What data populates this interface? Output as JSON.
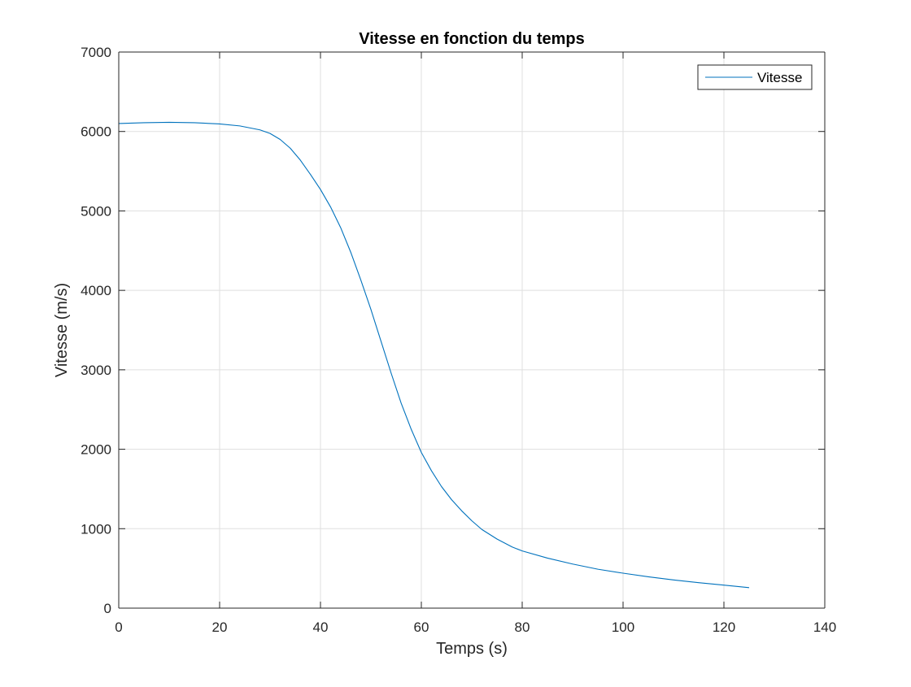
{
  "chart_data": {
    "type": "line",
    "title": "Vitesse en fonction du temps",
    "xlabel": "Temps (s)",
    "ylabel": "Vitesse (m/s)",
    "xlim": [
      0,
      140
    ],
    "ylim": [
      0,
      7000
    ],
    "xticks": [
      0,
      20,
      40,
      60,
      80,
      100,
      120,
      140
    ],
    "yticks": [
      0,
      1000,
      2000,
      3000,
      4000,
      5000,
      6000,
      7000
    ],
    "xtick_labels": [
      "0",
      "20",
      "40",
      "60",
      "80",
      "100",
      "120",
      "140"
    ],
    "ytick_labels": [
      "0",
      "1000",
      "2000",
      "3000",
      "4000",
      "5000",
      "6000",
      "7000"
    ],
    "grid": true,
    "legend_position": "top-right",
    "series": [
      {
        "name": "Vitesse",
        "color": "#0072BD",
        "x": [
          0,
          5,
          10,
          15,
          20,
          24,
          28,
          30,
          32,
          34,
          36,
          38,
          40,
          42,
          44,
          46,
          48,
          50,
          52,
          54,
          56,
          58,
          60,
          62,
          64,
          66,
          68,
          70,
          72,
          75,
          78,
          80,
          85,
          90,
          95,
          100,
          105,
          110,
          115,
          120,
          125
        ],
        "y": [
          6100,
          6110,
          6115,
          6110,
          6095,
          6070,
          6020,
          5975,
          5900,
          5790,
          5640,
          5460,
          5270,
          5050,
          4790,
          4480,
          4130,
          3760,
          3360,
          2960,
          2580,
          2250,
          1960,
          1730,
          1530,
          1365,
          1225,
          1100,
          990,
          870,
          770,
          720,
          630,
          555,
          490,
          440,
          395,
          355,
          320,
          290,
          258
        ]
      }
    ]
  }
}
